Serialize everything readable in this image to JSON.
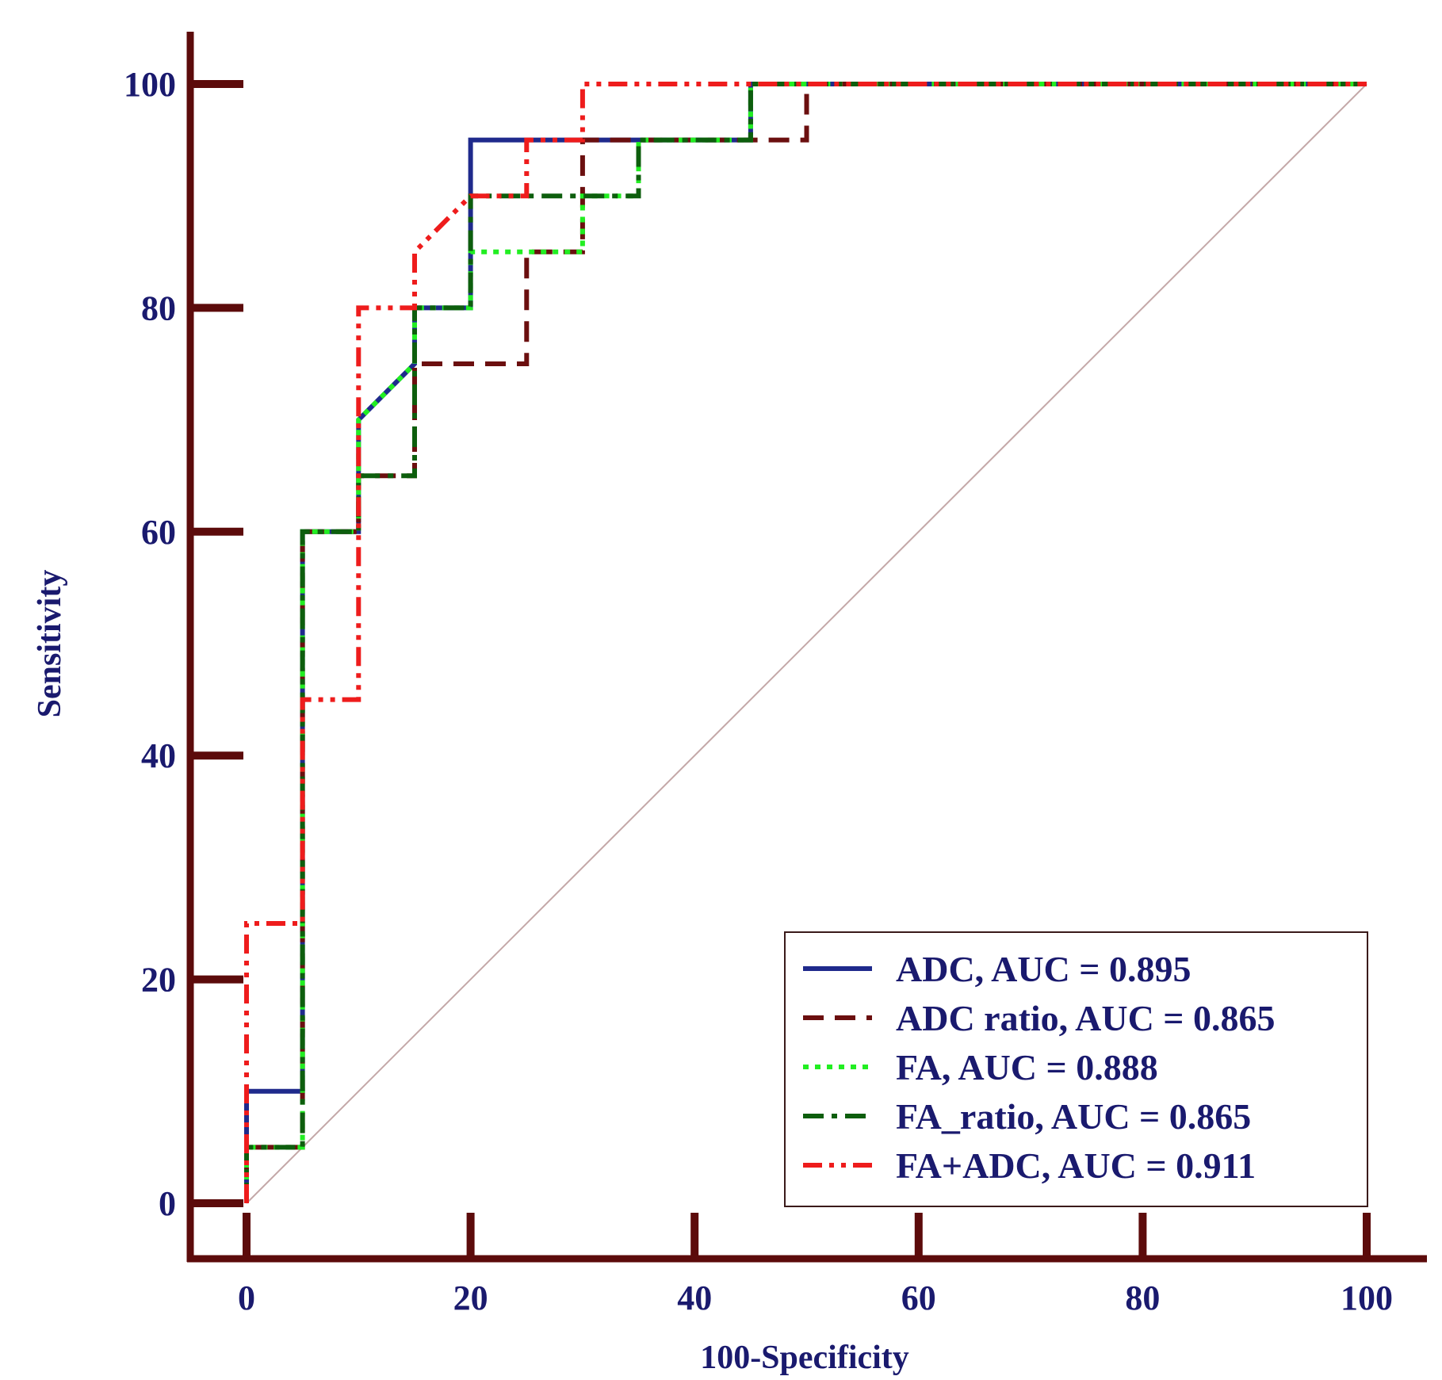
{
  "chart_data": {
    "type": "line",
    "xlabel": "100-Specificity",
    "ylabel": "Sensitivity",
    "xlim": [
      0,
      100
    ],
    "ylim": [
      0,
      100
    ],
    "x_ticks": [
      0,
      20,
      40,
      60,
      80,
      100
    ],
    "y_ticks": [
      0,
      20,
      40,
      60,
      80,
      100
    ],
    "x_tick_labels": [
      "0",
      "20",
      "40",
      "60",
      "80",
      "100"
    ],
    "y_tick_labels": [
      "0",
      "20",
      "40",
      "60",
      "80",
      "100"
    ],
    "grid": false,
    "legend_position": "bottom-right",
    "reference_line": {
      "x": [
        0,
        100
      ],
      "y": [
        0,
        100
      ],
      "color": "#c4a8a8"
    },
    "series": [
      {
        "name": "ADC, AUC = 0.895",
        "color": "#1f2a8c",
        "style": "solid",
        "x": [
          0,
          0,
          5,
          5,
          10,
          10,
          15,
          15,
          20,
          20,
          35,
          35,
          45,
          45,
          100
        ],
        "y": [
          0,
          10,
          10,
          60,
          60,
          70,
          75,
          80,
          80,
          95,
          95,
          95,
          95,
          100,
          100
        ]
      },
      {
        "name": "ADC ratio, AUC = 0.865",
        "color": "#6b0f0f",
        "style": "dashed",
        "x": [
          0,
          0,
          5,
          5,
          10,
          10,
          15,
          15,
          25,
          25,
          30,
          30,
          50,
          50,
          100
        ],
        "y": [
          0,
          5,
          5,
          60,
          60,
          65,
          65,
          75,
          75,
          85,
          85,
          95,
          95,
          100,
          100
        ]
      },
      {
        "name": "FA, AUC = 0.888",
        "color": "#22ee22",
        "style": "dotted",
        "x": [
          0,
          0,
          5,
          5,
          10,
          10,
          15,
          15,
          20,
          20,
          30,
          30,
          35,
          35,
          45,
          45,
          100
        ],
        "y": [
          0,
          5,
          5,
          60,
          60,
          70,
          75,
          80,
          80,
          85,
          85,
          90,
          90,
          95,
          95,
          100,
          100
        ]
      },
      {
        "name": "FA_ratio, AUC = 0.865",
        "color": "#0d5e0d",
        "style": "dashdot",
        "x": [
          0,
          0,
          5,
          5,
          10,
          10,
          15,
          15,
          20,
          20,
          35,
          35,
          45,
          45,
          100
        ],
        "y": [
          0,
          5,
          5,
          60,
          60,
          65,
          65,
          80,
          80,
          90,
          90,
          95,
          95,
          100,
          100
        ]
      },
      {
        "name": "FA+ADC, AUC = 0.911",
        "color": "#ee1c1c",
        "style": "dashdotdot",
        "x": [
          0,
          0,
          5,
          5,
          10,
          10,
          15,
          15,
          20,
          25,
          25,
          30,
          30,
          100
        ],
        "y": [
          0,
          25,
          25,
          45,
          45,
          80,
          80,
          85,
          90,
          90,
          95,
          95,
          100,
          100
        ]
      }
    ]
  }
}
